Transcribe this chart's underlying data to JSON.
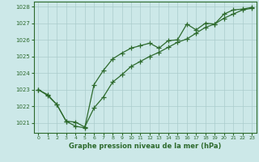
{
  "line1_x": [
    0,
    1,
    2,
    3,
    4,
    5,
    6,
    7,
    8,
    9,
    10,
    11,
    12,
    13,
    14,
    15,
    16,
    17,
    18,
    19,
    20,
    21,
    22,
    23
  ],
  "line1_y": [
    1023.0,
    1022.7,
    1022.1,
    1021.1,
    1020.8,
    1020.7,
    1023.3,
    1024.15,
    1024.85,
    1025.2,
    1025.5,
    1025.65,
    1025.8,
    1025.5,
    1025.95,
    1026.0,
    1026.95,
    1026.6,
    1027.0,
    1026.95,
    1027.55,
    1027.8,
    1027.85,
    1027.95
  ],
  "line2_x": [
    0,
    1,
    2,
    3,
    4,
    5,
    6,
    7,
    8,
    9,
    10,
    11,
    12,
    13,
    14,
    15,
    16,
    17,
    18,
    19,
    20,
    21,
    22,
    23
  ],
  "line2_y": [
    1023.0,
    1022.65,
    1022.1,
    1021.1,
    1021.05,
    1020.75,
    1021.9,
    1022.55,
    1023.45,
    1023.9,
    1024.4,
    1024.7,
    1025.0,
    1025.25,
    1025.55,
    1025.85,
    1026.05,
    1026.4,
    1026.75,
    1026.95,
    1027.3,
    1027.55,
    1027.8,
    1027.9
  ],
  "line_color": "#2d6a2d",
  "bg_color": "#cce8e8",
  "grid_color": "#aacccc",
  "xlabel": "Graphe pression niveau de la mer (hPa)",
  "ylim": [
    1020.4,
    1028.3
  ],
  "xlim": [
    -0.5,
    23.5
  ],
  "yticks": [
    1021,
    1022,
    1023,
    1024,
    1025,
    1026,
    1027,
    1028
  ],
  "xticks": [
    0,
    1,
    2,
    3,
    4,
    5,
    6,
    7,
    8,
    9,
    10,
    11,
    12,
    13,
    14,
    15,
    16,
    17,
    18,
    19,
    20,
    21,
    22,
    23
  ],
  "marker": "+",
  "markersize": 4,
  "linewidth": 0.9,
  "tick_fontsize": 5.5,
  "xlabel_fontsize": 6.0
}
